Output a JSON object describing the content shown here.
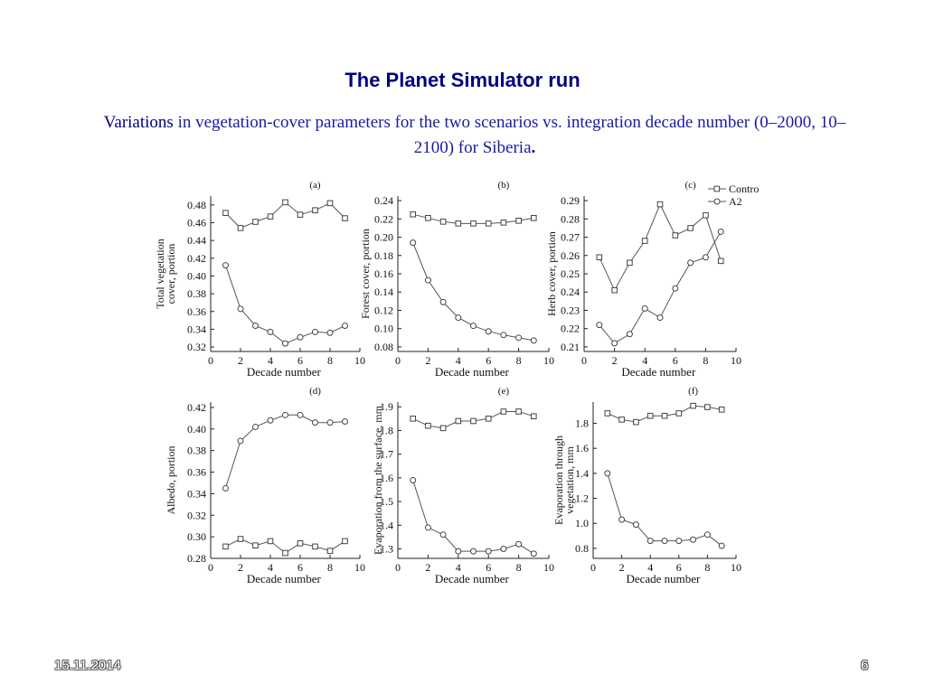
{
  "slide": {
    "title": "The Planet Simulator run",
    "subtitle_lead": "Variations",
    "subtitle_rest": " in vegetation-cover parameters for the two scenarios vs. integration decade number (0–2000, 10–2100) for Siberia",
    "subtitle_end": ".",
    "date": "15.11.2014",
    "page_number": "6"
  },
  "legend": {
    "placement": "top-right of panel (c)",
    "entries": [
      "Control",
      "A2"
    ]
  },
  "chart_data": [
    {
      "type": "line",
      "panel": "(a)",
      "xlabel": "Decade number",
      "ylabel": "Total vegetation cover, portion",
      "x": [
        1,
        2,
        3,
        4,
        5,
        6,
        7,
        8,
        9
      ],
      "xlim": [
        0,
        10
      ],
      "xticks": [
        0,
        2,
        4,
        6,
        8,
        10
      ],
      "ylim": [
        0.315,
        0.49
      ],
      "yticks": [
        0.32,
        0.34,
        0.36,
        0.38,
        0.4,
        0.42,
        0.44,
        0.46,
        0.48
      ],
      "ydec": 2,
      "series": [
        {
          "name": "Control",
          "marker": "square",
          "values": [
            0.471,
            0.454,
            0.461,
            0.467,
            0.483,
            0.469,
            0.474,
            0.482,
            0.465
          ]
        },
        {
          "name": "A2",
          "marker": "circle",
          "values": [
            0.412,
            0.363,
            0.344,
            0.337,
            0.324,
            0.331,
            0.337,
            0.336,
            0.344
          ]
        }
      ]
    },
    {
      "type": "line",
      "panel": "(b)",
      "xlabel": "Decade number",
      "ylabel": "Forest cover, portion",
      "x": [
        1,
        2,
        3,
        4,
        5,
        6,
        7,
        8,
        9
      ],
      "xlim": [
        0,
        10
      ],
      "xticks": [
        0,
        2,
        4,
        6,
        8,
        10
      ],
      "ylim": [
        0.075,
        0.245
      ],
      "yticks": [
        0.08,
        0.1,
        0.12,
        0.14,
        0.16,
        0.18,
        0.2,
        0.22,
        0.24
      ],
      "ydec": 2,
      "series": [
        {
          "name": "Control",
          "marker": "square",
          "values": [
            0.225,
            0.221,
            0.217,
            0.215,
            0.215,
            0.215,
            0.216,
            0.218,
            0.221
          ]
        },
        {
          "name": "A2",
          "marker": "circle",
          "values": [
            0.194,
            0.153,
            0.129,
            0.112,
            0.103,
            0.097,
            0.093,
            0.09,
            0.087
          ]
        }
      ]
    },
    {
      "type": "line",
      "panel": "(c)",
      "xlabel": "Decade number",
      "ylabel": "Herb cover, portion",
      "x": [
        1,
        2,
        3,
        4,
        5,
        6,
        7,
        8,
        9
      ],
      "xlim": [
        0,
        10
      ],
      "xticks": [
        0,
        2,
        4,
        6,
        8,
        10
      ],
      "ylim": [
        0.2075,
        0.2925
      ],
      "yticks": [
        0.21,
        0.22,
        0.23,
        0.24,
        0.25,
        0.26,
        0.27,
        0.28,
        0.29
      ],
      "ydec": 2,
      "series": [
        {
          "name": "Control",
          "marker": "square",
          "values": [
            0.259,
            0.241,
            0.256,
            0.268,
            0.288,
            0.271,
            0.275,
            0.282,
            0.257
          ]
        },
        {
          "name": "A2",
          "marker": "circle",
          "values": [
            0.222,
            0.212,
            0.217,
            0.231,
            0.226,
            0.242,
            0.256,
            0.259,
            0.273
          ]
        }
      ]
    },
    {
      "type": "line",
      "panel": "(d)",
      "xlabel": "Decade number",
      "ylabel": "Albedo, portion",
      "x": [
        1,
        2,
        3,
        4,
        5,
        6,
        7,
        8,
        9
      ],
      "xlim": [
        0,
        10
      ],
      "xticks": [
        0,
        2,
        4,
        6,
        8,
        10
      ],
      "ylim": [
        0.28,
        0.425
      ],
      "yticks": [
        0.28,
        0.3,
        0.32,
        0.34,
        0.36,
        0.38,
        0.4,
        0.42
      ],
      "ydec": 2,
      "series": [
        {
          "name": "Control",
          "marker": "square",
          "values": [
            0.291,
            0.298,
            0.292,
            0.296,
            0.285,
            0.294,
            0.291,
            0.287,
            0.296
          ]
        },
        {
          "name": "A2",
          "marker": "circle",
          "values": [
            0.345,
            0.389,
            0.402,
            0.408,
            0.413,
            0.413,
            0.406,
            0.406,
            0.407
          ]
        }
      ]
    },
    {
      "type": "line",
      "panel": "(e)",
      "xlabel": "Decade number",
      "ylabel": "Evaporation from the surface, mm",
      "x": [
        1,
        2,
        3,
        4,
        5,
        6,
        7,
        8,
        9
      ],
      "xlim": [
        0,
        10
      ],
      "xticks": [
        0,
        2,
        4,
        6,
        8,
        10
      ],
      "ylim": [
        1.26,
        1.92
      ],
      "yticks": [
        1.3,
        1.4,
        1.5,
        1.6,
        1.7,
        1.8,
        1.9
      ],
      "ydec": 1,
      "series": [
        {
          "name": "Control",
          "marker": "square",
          "values": [
            1.85,
            1.82,
            1.81,
            1.84,
            1.84,
            1.85,
            1.88,
            1.88,
            1.86
          ]
        },
        {
          "name": "A2",
          "marker": "circle",
          "values": [
            1.59,
            1.39,
            1.36,
            1.29,
            1.29,
            1.29,
            1.3,
            1.32,
            1.28
          ]
        }
      ]
    },
    {
      "type": "line",
      "panel": "(f)",
      "xlabel": "Decade number",
      "ylabel": "Evaporation through vegetation, mm",
      "x": [
        1,
        2,
        3,
        4,
        5,
        6,
        7,
        8,
        9
      ],
      "xlim": [
        0,
        10
      ],
      "xticks": [
        0,
        2,
        4,
        6,
        8,
        10
      ],
      "ylim": [
        0.72,
        1.97
      ],
      "yticks": [
        0.8,
        1.0,
        1.2,
        1.4,
        1.6,
        1.8
      ],
      "ydec": 1,
      "series": [
        {
          "name": "Control",
          "marker": "square",
          "values": [
            1.88,
            1.83,
            1.81,
            1.86,
            1.86,
            1.88,
            1.94,
            1.93,
            1.91
          ]
        },
        {
          "name": "A2",
          "marker": "circle",
          "values": [
            1.4,
            1.03,
            0.99,
            0.86,
            0.86,
            0.86,
            0.87,
            0.91,
            0.82
          ]
        }
      ]
    }
  ]
}
